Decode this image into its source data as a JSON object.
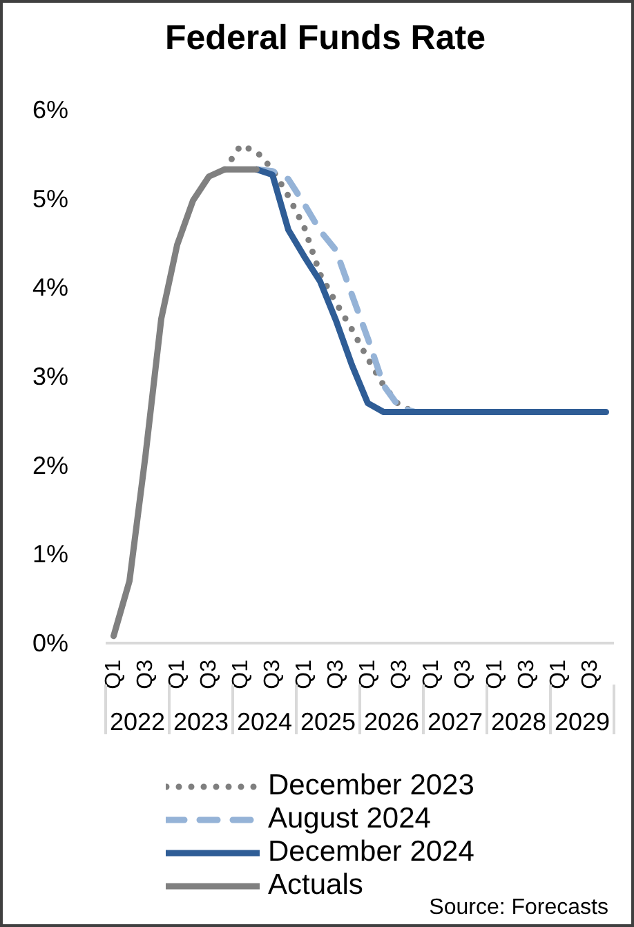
{
  "chart_data": {
    "type": "line",
    "title": "Federal Funds Rate",
    "categories": [
      "Q1",
      null,
      "Q3",
      null,
      "Q1",
      null,
      "Q3",
      null,
      "Q1",
      null,
      "Q3",
      null,
      "Q1",
      null,
      "Q3",
      null,
      "Q1",
      null,
      "Q3",
      null,
      "Q1",
      null,
      "Q3",
      null,
      "Q1",
      null,
      "Q3",
      null,
      "Q1",
      null,
      "Q3",
      null
    ],
    "series": [
      {
        "name": "December 2023",
        "color": "#7f7f7f",
        "line_style": "dotted",
        "values": [
          null,
          null,
          null,
          null,
          null,
          null,
          null,
          5.33,
          5.6,
          5.53,
          5.33,
          5.03,
          4.68,
          4.15,
          3.83,
          3.53,
          3.2,
          2.9,
          2.67,
          2.6,
          null,
          null,
          null,
          null,
          null,
          null,
          null,
          null,
          null,
          null,
          null,
          null
        ]
      },
      {
        "name": "August 2024",
        "color": "#95b3d7",
        "line_style": "dashed",
        "values": [
          null,
          null,
          null,
          null,
          null,
          null,
          null,
          null,
          null,
          5.33,
          5.31,
          5.22,
          4.94,
          4.64,
          4.42,
          3.92,
          3.43,
          2.9,
          2.65,
          2.6,
          null,
          null,
          null,
          null,
          null,
          null,
          null,
          null,
          null,
          null,
          null,
          null
        ]
      },
      {
        "name": "December 2024",
        "color": "#2f5d96",
        "line_style": "solid",
        "values": [
          null,
          null,
          null,
          null,
          null,
          null,
          null,
          null,
          null,
          5.33,
          5.27,
          4.65,
          4.35,
          4.07,
          3.63,
          3.13,
          2.7,
          2.6,
          2.6,
          2.6,
          2.6,
          2.6,
          2.6,
          2.6,
          2.6,
          2.6,
          2.6,
          2.6,
          2.6,
          2.6,
          2.6,
          2.6
        ]
      },
      {
        "name": "Actuals",
        "color": "#808080",
        "line_style": "solid",
        "values": [
          0.08,
          0.7,
          2.1,
          3.65,
          4.48,
          4.98,
          5.25,
          5.33,
          5.33,
          5.33,
          null,
          null,
          null,
          null,
          null,
          null,
          null,
          null,
          null,
          null,
          null,
          null,
          null,
          null,
          null,
          null,
          null,
          null,
          null,
          null,
          null,
          null
        ]
      }
    ],
    "ylim": [
      0,
      6
    ],
    "yticks": [
      {
        "value": 0,
        "label": "0%"
      },
      {
        "value": 1,
        "label": "1%"
      },
      {
        "value": 2,
        "label": "2%"
      },
      {
        "value": 3,
        "label": "3%"
      },
      {
        "value": 4,
        "label": "4%"
      },
      {
        "value": 5,
        "label": "5%"
      },
      {
        "value": 6,
        "label": "6%"
      }
    ],
    "legend": "bottom",
    "annotations": [
      "2022",
      "2023",
      "2024",
      "2025",
      "2026",
      "2027",
      "2028",
      "2029",
      "Source: Forecasts"
    ]
  }
}
